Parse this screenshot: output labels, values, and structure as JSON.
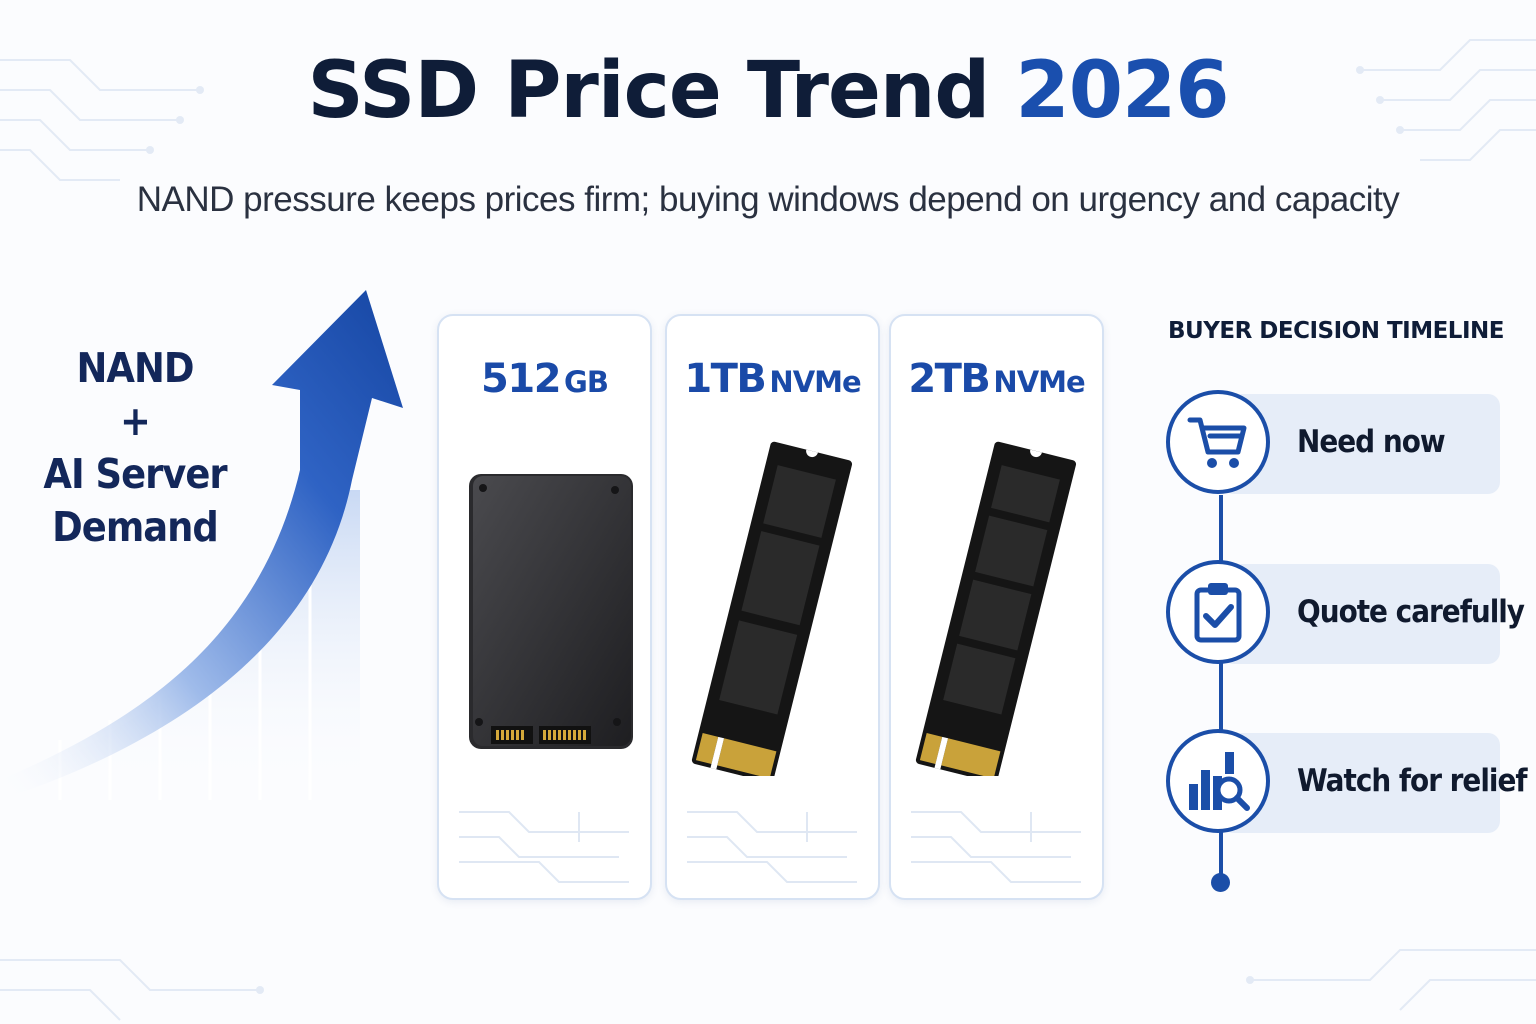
{
  "header": {
    "title": "SSD Price Trend",
    "title_year": "2026",
    "subtitle": "NAND pressure keeps prices firm; buying windows depend on urgency and capacity"
  },
  "demand": {
    "line1": "NAND",
    "line2": "+",
    "line3": "AI Server",
    "line4": "Demand",
    "arrow_icon": "trend-up-arrow"
  },
  "products": [
    {
      "capacity": "512",
      "unit": "GB",
      "type": "2.5-inch-sata-ssd"
    },
    {
      "capacity": "1TB",
      "unit": "NVMe",
      "type": "m2-nvme-ssd"
    },
    {
      "capacity": "2TB",
      "unit": "NVMe",
      "type": "m2-nvme-ssd"
    }
  ],
  "timeline": {
    "title": "BUYER DECISION TIMELINE",
    "steps": [
      {
        "label": "Need now",
        "icon": "shopping-cart-icon"
      },
      {
        "label": "Quote carefully",
        "icon": "clipboard-check-icon"
      },
      {
        "label": "Watch for relief",
        "icon": "chart-magnifier-icon"
      }
    ]
  },
  "colors": {
    "accent_blue": "#1a4fae",
    "title_dark": "#0f1d38",
    "pill_bg": "#e6edf8"
  }
}
